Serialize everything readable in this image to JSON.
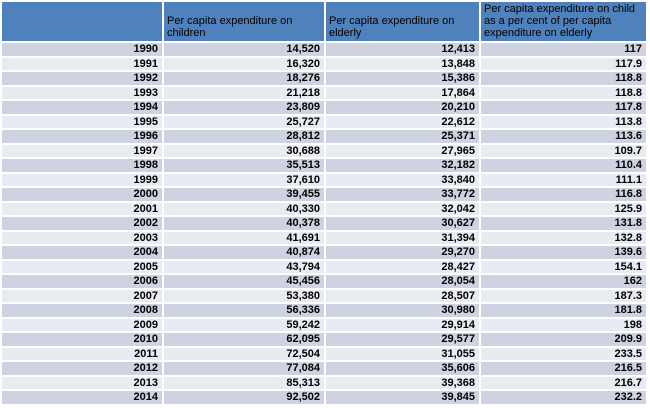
{
  "colors": {
    "header_bg": "#4f81bd",
    "row_band_dark": "#cdd3e1",
    "row_band_light": "#e9ebf3",
    "grid": "#ffffff",
    "text": "#000000"
  },
  "chart_data": {
    "type": "table",
    "columns": [
      "",
      "Per capita expenditure on children",
      "Per capita expenditure on elderly",
      "Per capita expenditure on child as a per cent of per capita expenditure on elderly"
    ],
    "years": [
      1990,
      1991,
      1992,
      1993,
      1994,
      1995,
      1996,
      1997,
      1998,
      1999,
      2000,
      2001,
      2002,
      2003,
      2004,
      2005,
      2006,
      2007,
      2008,
      2009,
      2010,
      2011,
      2012,
      2013,
      2014
    ],
    "series": [
      {
        "name": "Per capita expenditure on children",
        "values": [
          14520,
          16320,
          18276,
          21218,
          23809,
          25727,
          28812,
          30688,
          35513,
          37610,
          39455,
          40330,
          40378,
          41691,
          40874,
          43794,
          45456,
          53380,
          56336,
          59242,
          62095,
          72504,
          77084,
          85313,
          92502
        ]
      },
      {
        "name": "Per capita expenditure on elderly",
        "values": [
          12413,
          13848,
          15386,
          17864,
          20210,
          22612,
          25371,
          27965,
          32182,
          33840,
          33772,
          32042,
          30627,
          31394,
          29270,
          28427,
          28054,
          28507,
          30980,
          29914,
          29577,
          31055,
          35606,
          39368,
          39845
        ]
      },
      {
        "name": "Per capita expenditure on child as a per cent of per capita expenditure on elderly",
        "values": [
          117,
          117.9,
          118.8,
          118.8,
          117.8,
          113.8,
          113.6,
          109.7,
          110.4,
          111.1,
          116.8,
          125.9,
          131.8,
          132.8,
          139.6,
          154.1,
          162,
          187.3,
          181.8,
          198,
          209.9,
          233.5,
          216.5,
          216.7,
          232.2
        ]
      }
    ]
  }
}
